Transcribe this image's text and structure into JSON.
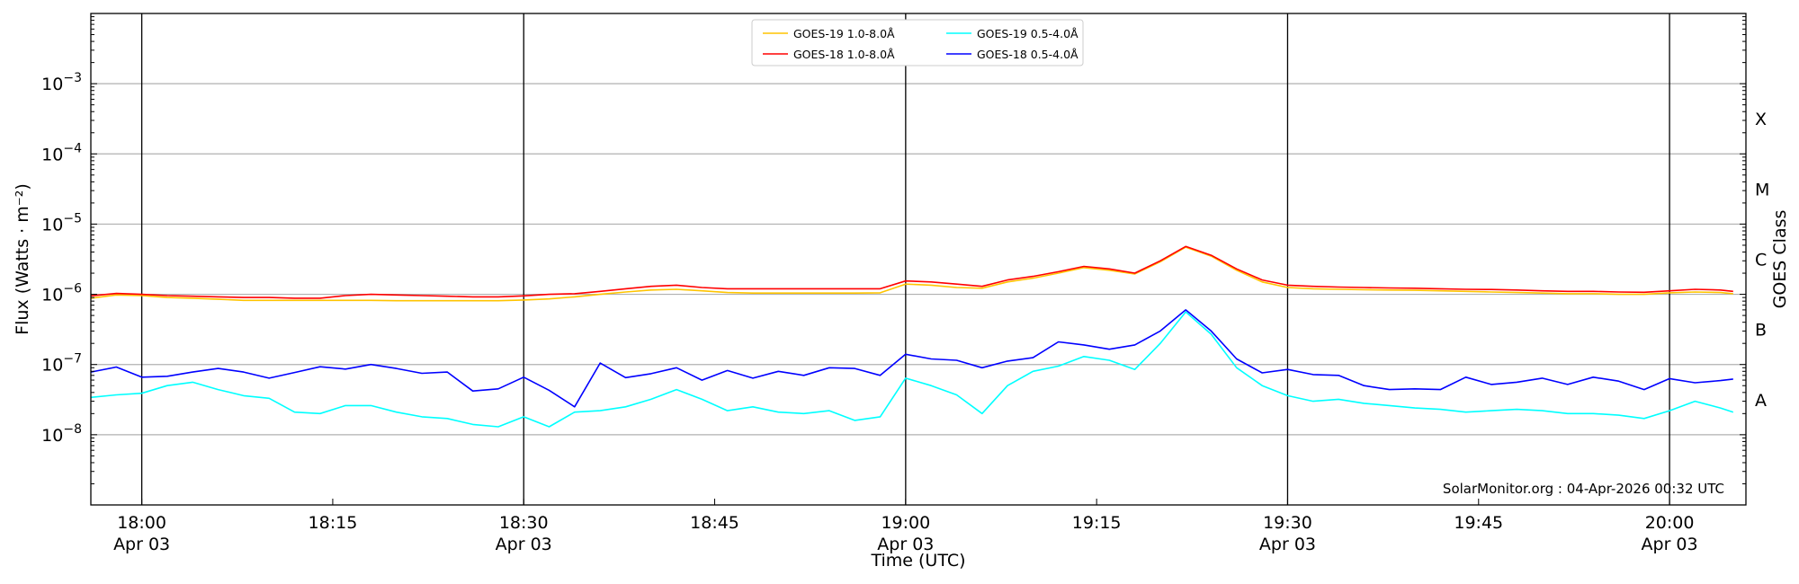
{
  "chart_data": {
    "type": "line",
    "title": "",
    "xlabel": "Time (UTC)",
    "ylabel": "Flux (Watts · m⁻²)",
    "y2label": "GOES Class",
    "x_units": "minutes after 18:00 UTC, Apr 03",
    "xlim": [
      -4,
      126
    ],
    "ylim": [
      1e-09,
      0.01
    ],
    "yscale": "log",
    "grid": true,
    "legend_position": "top-center",
    "watermark": "SolarMonitor.org : 04-Apr-2026 00:32 UTC",
    "yticks": [
      {
        "exp": "−8",
        "value": 1e-08
      },
      {
        "exp": "−7",
        "value": 1e-07
      },
      {
        "exp": "−6",
        "value": 1e-06
      },
      {
        "exp": "−5",
        "value": 1e-05
      },
      {
        "exp": "−4",
        "value": 0.0001
      },
      {
        "exp": "−3",
        "value": 0.001
      }
    ],
    "ytick_base": "10",
    "xticks": [
      {
        "x": 0,
        "line1": "18:00",
        "line2": "Apr 03"
      },
      {
        "x": 15,
        "line1": "18:15",
        "line2": ""
      },
      {
        "x": 30,
        "line1": "18:30",
        "line2": "Apr 03"
      },
      {
        "x": 45,
        "line1": "18:45",
        "line2": ""
      },
      {
        "x": 60,
        "line1": "19:00",
        "line2": "Apr 03"
      },
      {
        "x": 75,
        "line1": "19:15",
        "line2": ""
      },
      {
        "x": 90,
        "line1": "19:30",
        "line2": "Apr 03"
      },
      {
        "x": 105,
        "line1": "19:45",
        "line2": ""
      },
      {
        "x": 120,
        "line1": "20:00",
        "line2": "Apr 03"
      }
    ],
    "goes_classes": [
      {
        "label": "X",
        "value": 0.000316
      },
      {
        "label": "M",
        "value": 3.16e-05
      },
      {
        "label": "C",
        "value": 3.16e-06
      },
      {
        "label": "B",
        "value": 3.16e-07
      },
      {
        "label": "A",
        "value": 3.16e-08
      }
    ],
    "x": [
      -4,
      -2,
      0,
      2,
      4,
      6,
      8,
      10,
      12,
      14,
      16,
      18,
      20,
      22,
      24,
      26,
      28,
      30,
      32,
      34,
      36,
      38,
      40,
      42,
      44,
      46,
      48,
      50,
      52,
      54,
      56,
      58,
      60,
      62,
      64,
      66,
      68,
      70,
      72,
      74,
      76,
      78,
      80,
      82,
      84,
      86,
      88,
      90,
      92,
      94,
      96,
      98,
      100,
      102,
      104,
      106,
      108,
      110,
      112,
      114,
      116,
      118,
      120,
      122,
      124,
      125
    ],
    "series": [
      {
        "name": "GOES-19 1.0-8.0Å",
        "color": "#ffc400",
        "values": [
          8.8e-07,
          9.8e-07,
          9.6e-07,
          9e-07,
          8.8e-07,
          8.5e-07,
          8.2e-07,
          8.2e-07,
          8.2e-07,
          8.2e-07,
          8.2e-07,
          8.2e-07,
          8.1e-07,
          8.1e-07,
          8.1e-07,
          8.1e-07,
          8.1e-07,
          8.3e-07,
          8.6e-07,
          9.2e-07,
          1e-06,
          1.08e-06,
          1.15e-06,
          1.18e-06,
          1.12e-06,
          1.06e-06,
          1.04e-06,
          1.04e-06,
          1.04e-06,
          1.04e-06,
          1.04e-06,
          1.05e-06,
          1.4e-06,
          1.35e-06,
          1.25e-06,
          1.22e-06,
          1.5e-06,
          1.7e-06,
          2e-06,
          2.4e-06,
          2.2e-06,
          1.95e-06,
          2.9e-06,
          4.7e-06,
          3.5e-06,
          2.2e-06,
          1.5e-06,
          1.25e-06,
          1.2e-06,
          1.18e-06,
          1.16e-06,
          1.15e-06,
          1.14e-06,
          1.12e-06,
          1.1e-06,
          1.08e-06,
          1.06e-06,
          1.04e-06,
          1.02e-06,
          1.02e-06,
          1e-06,
          1e-06,
          1.05e-06,
          1.08e-06,
          1.06e-06,
          1.02e-06
        ]
      },
      {
        "name": "GOES-18 1.0-8.0Å",
        "color": "#ff0000",
        "values": [
          9.5e-07,
          1.03e-06,
          1e-06,
          9.6e-07,
          9.4e-07,
          9.2e-07,
          9e-07,
          9e-07,
          8.8e-07,
          8.8e-07,
          9.6e-07,
          1e-06,
          9.8e-07,
          9.6e-07,
          9.4e-07,
          9.2e-07,
          9.2e-07,
          9.5e-07,
          1e-06,
          1.02e-06,
          1.1e-06,
          1.2e-06,
          1.3e-06,
          1.35e-06,
          1.25e-06,
          1.2e-06,
          1.2e-06,
          1.2e-06,
          1.2e-06,
          1.2e-06,
          1.2e-06,
          1.2e-06,
          1.55e-06,
          1.5e-06,
          1.4e-06,
          1.3e-06,
          1.6e-06,
          1.8e-06,
          2.1e-06,
          2.5e-06,
          2.3e-06,
          2e-06,
          3e-06,
          4.8e-06,
          3.6e-06,
          2.3e-06,
          1.6e-06,
          1.35e-06,
          1.3e-06,
          1.27e-06,
          1.25e-06,
          1.23e-06,
          1.22e-06,
          1.2e-06,
          1.18e-06,
          1.17e-06,
          1.15e-06,
          1.12e-06,
          1.1e-06,
          1.1e-06,
          1.08e-06,
          1.07e-06,
          1.12e-06,
          1.18e-06,
          1.15e-06,
          1.1e-06
        ]
      },
      {
        "name": "GOES-19 0.5-4.0Å",
        "color": "#00ffff",
        "values": [
          3.4e-08,
          3.7e-08,
          3.9e-08,
          5e-08,
          5.6e-08,
          4.4e-08,
          3.6e-08,
          3.3e-08,
          2.1e-08,
          2e-08,
          2.6e-08,
          2.6e-08,
          2.1e-08,
          1.8e-08,
          1.7e-08,
          1.4e-08,
          1.3e-08,
          1.8e-08,
          1.3e-08,
          2.1e-08,
          2.2e-08,
          2.5e-08,
          3.2e-08,
          4.4e-08,
          3.2e-08,
          2.2e-08,
          2.5e-08,
          2.1e-08,
          2e-08,
          2.2e-08,
          1.6e-08,
          1.8e-08,
          6.4e-08,
          5e-08,
          3.7e-08,
          2e-08,
          5e-08,
          8e-08,
          9.5e-08,
          1.3e-07,
          1.15e-07,
          8.5e-08,
          2e-07,
          5.6e-07,
          2.7e-07,
          9e-08,
          5e-08,
          3.6e-08,
          3e-08,
          3.2e-08,
          2.8e-08,
          2.6e-08,
          2.4e-08,
          2.3e-08,
          2.1e-08,
          2.2e-08,
          2.3e-08,
          2.2e-08,
          2e-08,
          2e-08,
          1.9e-08,
          1.7e-08,
          2.2e-08,
          3e-08,
          2.4e-08,
          2.1e-08
        ]
      },
      {
        "name": "GOES-18 0.5-4.0Å",
        "color": "#0000ff",
        "values": [
          7.8e-08,
          9.2e-08,
          6.6e-08,
          6.8e-08,
          7.8e-08,
          8.8e-08,
          7.8e-08,
          6.4e-08,
          7.7e-08,
          9.3e-08,
          8.6e-08,
          1e-07,
          8.8e-08,
          7.5e-08,
          7.8e-08,
          4.2e-08,
          4.5e-08,
          6.6e-08,
          4.3e-08,
          2.5e-08,
          1.05e-07,
          6.5e-08,
          7.4e-08,
          9e-08,
          6e-08,
          8.2e-08,
          6.4e-08,
          8e-08,
          7e-08,
          9e-08,
          8.8e-08,
          7e-08,
          1.4e-07,
          1.2e-07,
          1.15e-07,
          9e-08,
          1.12e-07,
          1.25e-07,
          2.1e-07,
          1.9e-07,
          1.65e-07,
          1.9e-07,
          3e-07,
          6e-07,
          3e-07,
          1.2e-07,
          7.6e-08,
          8.5e-08,
          7.2e-08,
          7e-08,
          5e-08,
          4.4e-08,
          4.5e-08,
          4.4e-08,
          6.6e-08,
          5.2e-08,
          5.6e-08,
          6.4e-08,
          5.2e-08,
          6.6e-08,
          5.8e-08,
          4.4e-08,
          6.3e-08,
          5.5e-08,
          5.9e-08,
          6.2e-08
        ]
      }
    ]
  }
}
